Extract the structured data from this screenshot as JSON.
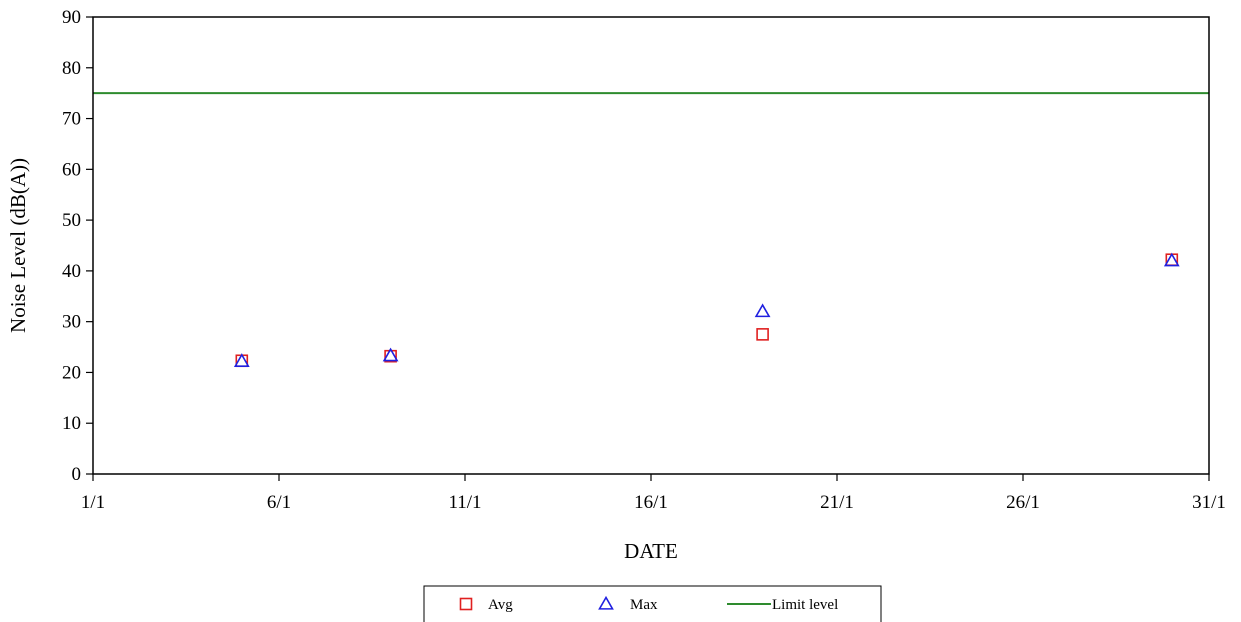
{
  "chart_data": {
    "type": "scatter",
    "title": "",
    "xlabel": "DATE",
    "ylabel": "Noise Level (dB(A))",
    "x_ticks": [
      "1/1",
      "6/1",
      "11/1",
      "16/1",
      "21/1",
      "26/1",
      "31/1"
    ],
    "x_tick_days": [
      1,
      6,
      11,
      16,
      21,
      26,
      31
    ],
    "xlim_days": [
      1,
      31
    ],
    "ylim": [
      0,
      90
    ],
    "y_ticks": [
      0,
      10,
      20,
      30,
      40,
      50,
      60,
      70,
      80,
      90
    ],
    "grid": false,
    "legend_position": "bottom",
    "series": [
      {
        "name": "Avg",
        "marker": "square",
        "color": "#e02020",
        "points": [
          {
            "x": "5/1",
            "day": 5,
            "y": 22.3
          },
          {
            "x": "9/1",
            "day": 9,
            "y": 23.2
          },
          {
            "x": "19/1",
            "day": 19,
            "y": 27.5
          },
          {
            "x": "30/1",
            "day": 30,
            "y": 42.2
          }
        ]
      },
      {
        "name": "Max",
        "marker": "triangle",
        "color": "#2020e0",
        "points": [
          {
            "x": "5/1",
            "day": 5,
            "y": 22.2
          },
          {
            "x": "9/1",
            "day": 9,
            "y": 23.3
          },
          {
            "x": "19/1",
            "day": 19,
            "y": 32.0
          },
          {
            "x": "30/1",
            "day": 30,
            "y": 42.0
          }
        ]
      }
    ],
    "reference_lines": [
      {
        "name": "Limit level",
        "y": 75,
        "color": "#2e8b2e"
      }
    ]
  }
}
